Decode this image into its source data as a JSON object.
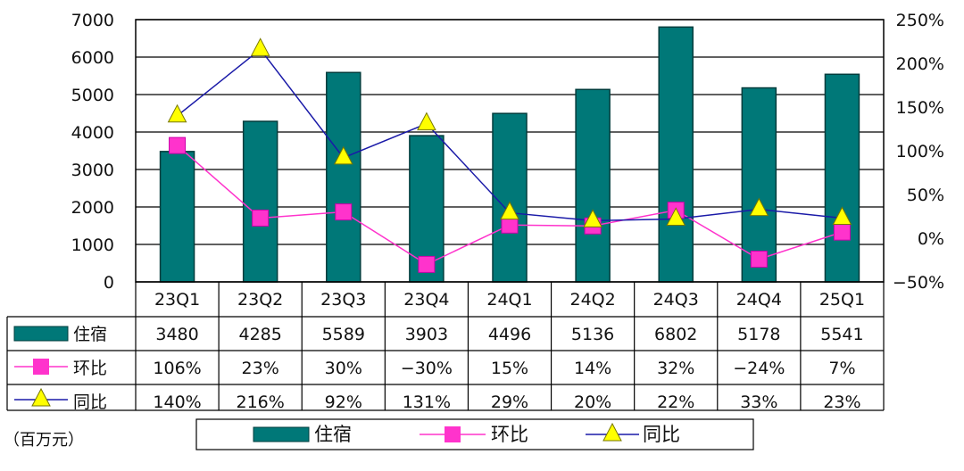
{
  "chart_data": {
    "type": "bar",
    "categories": [
      "23Q1",
      "23Q2",
      "23Q3",
      "23Q4",
      "24Q1",
      "24Q2",
      "24Q3",
      "24Q4",
      "25Q1"
    ],
    "series": [
      {
        "name": "住宿",
        "kind": "bar",
        "axis": "left",
        "color": "#007878",
        "values": [
          3480,
          4285,
          5589,
          3903,
          4496,
          5136,
          6802,
          5178,
          5541
        ]
      },
      {
        "name": "环比",
        "kind": "line",
        "axis": "right",
        "color": "#ff33cc",
        "marker": "square",
        "values": [
          106,
          23,
          30,
          -30,
          15,
          14,
          32,
          -24,
          7
        ],
        "labels": [
          "106%",
          "23%",
          "30%",
          "−30%",
          "15%",
          "14%",
          "32%",
          "−24%",
          "7%"
        ]
      },
      {
        "name": "同比",
        "kind": "line",
        "axis": "right",
        "color": "#1a1aa8",
        "marker": "triangle",
        "marker_color": "#ffff00",
        "values": [
          140,
          216,
          92,
          131,
          29,
          20,
          22,
          33,
          23
        ],
        "labels": [
          "140%",
          "216%",
          "92%",
          "131%",
          "29%",
          "20%",
          "22%",
          "33%",
          "23%"
        ]
      }
    ],
    "y_left": {
      "lim": [
        0,
        7000
      ],
      "ticks": [
        "0",
        "1000",
        "2000",
        "3000",
        "4000",
        "5000",
        "6000",
        "7000"
      ]
    },
    "y_right": {
      "lim": [
        -50,
        250
      ],
      "ticks": [
        "−50%",
        "0%",
        "50%",
        "100%",
        "150%",
        "200%",
        "250%"
      ]
    },
    "unit_note": "（百万元）",
    "legend": [
      "住宿",
      "环比",
      "同比"
    ],
    "grid": true,
    "data_table": true
  }
}
